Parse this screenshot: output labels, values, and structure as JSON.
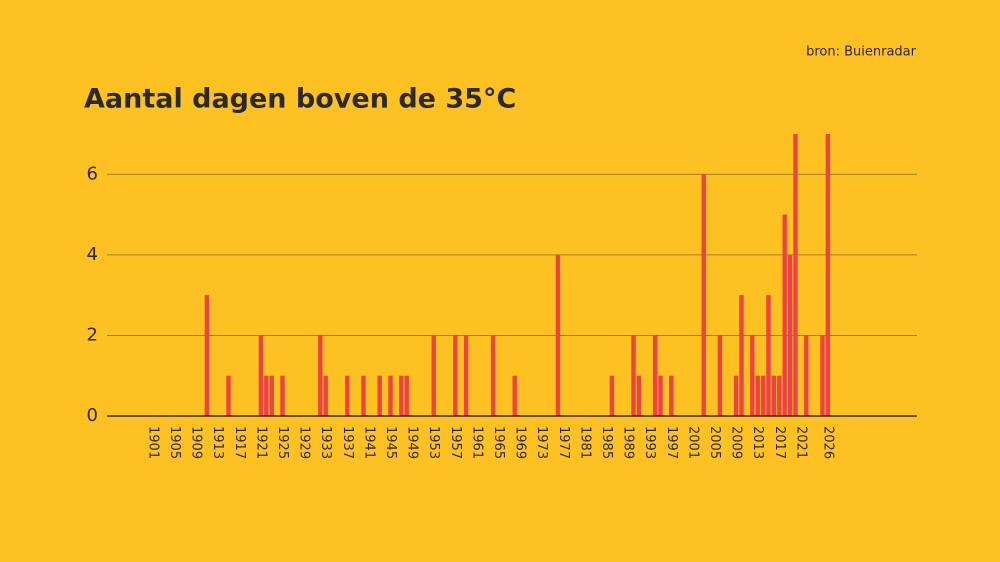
{
  "chart_data": {
    "type": "bar",
    "title": "Aantal dagen boven de 35°C",
    "source": "bron: Buienradar",
    "x": [
      1911,
      1915,
      1921,
      1922,
      1923,
      1925,
      1932,
      1933,
      1937,
      1940,
      1943,
      1945,
      1947,
      1948,
      1953,
      1957,
      1959,
      1964,
      1968,
      1976,
      1986,
      1990,
      1991,
      1994,
      1995,
      1997,
      2003,
      2006,
      2009,
      2010,
      2012,
      2013,
      2014,
      2015,
      2016,
      2017,
      2018,
      2019,
      2020,
      2022,
      2025,
      2026
    ],
    "values": [
      3,
      1,
      2,
      1,
      1,
      1,
      2,
      1,
      1,
      1,
      1,
      1,
      1,
      1,
      2,
      2,
      2,
      2,
      1,
      4,
      1,
      2,
      1,
      2,
      1,
      1,
      6,
      2,
      1,
      3,
      2,
      1,
      1,
      3,
      1,
      1,
      5,
      4,
      7,
      2,
      2,
      7
    ],
    "color": "#ee4343",
    "xlim": [
      1892.5,
      2042.5
    ],
    "xticks": [
      1901,
      1905,
      1909,
      1913,
      1917,
      1921,
      1925,
      1929,
      1933,
      1937,
      1941,
      1945,
      1949,
      1953,
      1957,
      1961,
      1965,
      1969,
      1973,
      1977,
      1981,
      1985,
      1989,
      1993,
      1997,
      2001,
      2005,
      2009,
      2013,
      2017,
      2021,
      2026
    ],
    "ylim": [
      0,
      7
    ],
    "yticks": [
      0,
      2,
      4,
      6
    ],
    "grid": true
  }
}
